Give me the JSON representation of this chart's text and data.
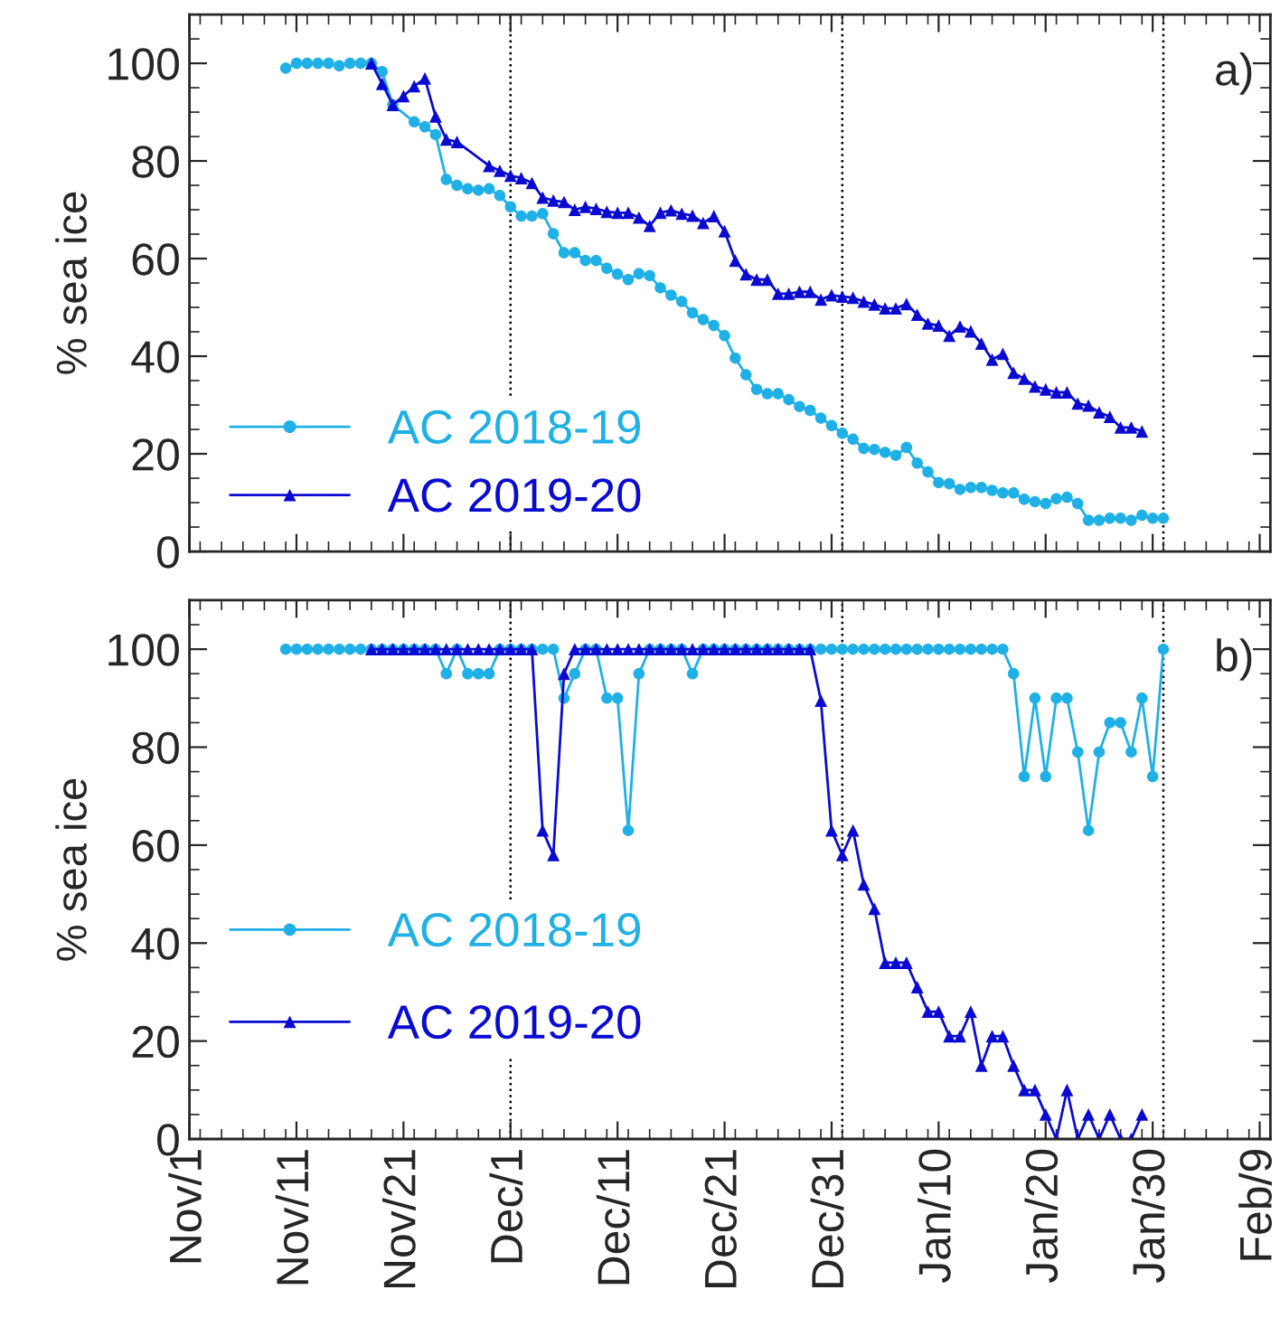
{
  "chart_data": [
    {
      "type": "line",
      "ylabel": "% sea ice",
      "annotations": [
        "a)"
      ],
      "legend": "bottom left",
      "tick_labels": "y",
      "grid": false,
      "xlim": [
        "2019-11-01",
        "2020-02-10"
      ],
      "ylim": [
        0,
        110
      ],
      "yticks": [
        0,
        20,
        40,
        60,
        80,
        100
      ],
      "xticks": [
        {
          "value": "2019-11-01",
          "label": null
        },
        {
          "value": "2019-11-11",
          "label": null
        },
        {
          "value": "2019-11-21",
          "label": null
        },
        {
          "value": "2019-12-01",
          "label": null
        },
        {
          "value": "2019-12-11",
          "label": null
        },
        {
          "value": "2019-12-21",
          "label": null
        },
        {
          "value": "2019-12-31",
          "label": null
        },
        {
          "value": "2020-01-10",
          "label": null
        },
        {
          "value": "2020-01-20",
          "label": null
        },
        {
          "value": "2020-01-30",
          "label": null
        },
        {
          "value": "2020-02-09",
          "label": null
        }
      ],
      "ref_lines": [
        {
          "axis": "x",
          "value": "2019-12-01",
          "color": "#000000",
          "line_style": "dotted"
        },
        {
          "axis": "x",
          "value": "2020-01-01",
          "color": "#000000",
          "line_style": "dotted"
        },
        {
          "axis": "x",
          "value": "2020-01-31",
          "color": "#000000",
          "line_style": "dotted"
        }
      ],
      "series": [
        {
          "name": "AC 2018-19",
          "color": "#1fb0e6",
          "marker": "circle",
          "x": [
            "2019-11-10",
            "2019-11-11",
            "2019-11-12",
            "2019-11-13",
            "2019-11-14",
            "2019-11-15",
            "2019-11-16",
            "2019-11-17",
            "2019-11-18",
            "2019-11-19",
            "2019-11-20",
            "2019-11-22",
            "2019-11-23",
            "2019-11-24",
            "2019-11-25",
            "2019-11-26",
            "2019-11-27",
            "2019-11-28",
            "2019-11-29",
            "2019-11-30",
            "2019-12-01",
            "2019-12-02",
            "2019-12-03",
            "2019-12-04",
            "2019-12-05",
            "2019-12-06",
            "2019-12-07",
            "2019-12-08",
            "2019-12-09",
            "2019-12-10",
            "2019-12-11",
            "2019-12-12",
            "2019-12-13",
            "2019-12-14",
            "2019-12-15",
            "2019-12-16",
            "2019-12-17",
            "2019-12-18",
            "2019-12-19",
            "2019-12-20",
            "2019-12-21",
            "2019-12-22",
            "2019-12-23",
            "2019-12-24",
            "2019-12-25",
            "2019-12-26",
            "2019-12-27",
            "2019-12-28",
            "2019-12-29",
            "2019-12-30",
            "2019-12-31",
            "2020-01-01",
            "2020-01-02",
            "2020-01-03",
            "2020-01-04",
            "2020-01-05",
            "2020-01-06",
            "2020-01-07",
            "2020-01-08",
            "2020-01-09",
            "2020-01-10",
            "2020-01-11",
            "2020-01-12",
            "2020-01-13",
            "2020-01-14",
            "2020-01-15",
            "2020-01-16",
            "2020-01-17",
            "2020-01-18",
            "2020-01-19",
            "2020-01-20",
            "2020-01-21",
            "2020-01-22",
            "2020-01-23",
            "2020-01-24",
            "2020-01-25",
            "2020-01-26",
            "2020-01-27",
            "2020-01-28",
            "2020-01-29",
            "2020-01-30",
            "2020-01-31"
          ],
          "values": [
            99,
            100,
            100,
            100,
            100,
            99.5,
            100,
            100,
            100,
            98.3,
            91.5,
            88,
            87,
            85.4,
            76.2,
            75,
            74.3,
            74,
            74.3,
            72.9,
            70.6,
            68.7,
            68.7,
            69.2,
            65.1,
            61.2,
            61.2,
            59.6,
            59.6,
            58,
            56.8,
            55.7,
            56.9,
            56.5,
            54,
            52.5,
            51.2,
            48.9,
            47.5,
            46.3,
            44.2,
            39.6,
            36.2,
            33.2,
            32.3,
            32.3,
            31.1,
            29.7,
            28.9,
            27.3,
            25.8,
            24.2,
            23,
            21.1,
            20.9,
            20.3,
            19.7,
            21.3,
            18.1,
            16.3,
            14.1,
            13.9,
            12.7,
            13.1,
            13.1,
            12.5,
            12,
            12,
            10.7,
            10.2,
            9.8,
            10.8,
            11.1,
            9.8,
            6.4,
            6.4,
            6.8,
            6.8,
            6.4,
            7.4,
            6.8,
            6.8
          ]
        },
        {
          "name": "AC 2019-20",
          "color": "#0a0ad2",
          "marker": "triangle",
          "x": [
            "2019-11-18",
            "2019-11-19",
            "2019-11-20",
            "2019-11-21",
            "2019-11-22",
            "2019-11-23",
            "2019-11-24",
            "2019-11-25",
            "2019-11-26",
            "2019-11-29",
            "2019-11-30",
            "2019-12-01",
            "2019-12-02",
            "2019-12-03",
            "2019-12-04",
            "2019-12-05",
            "2019-12-06",
            "2019-12-07",
            "2019-12-08",
            "2019-12-09",
            "2019-12-10",
            "2019-12-11",
            "2019-12-12",
            "2019-12-13",
            "2019-12-14",
            "2019-12-15",
            "2019-12-16",
            "2019-12-17",
            "2019-12-18",
            "2019-12-19",
            "2019-12-20",
            "2019-12-21",
            "2019-12-22",
            "2019-12-23",
            "2019-12-24",
            "2019-12-25",
            "2019-12-26",
            "2019-12-27",
            "2019-12-28",
            "2019-12-29",
            "2019-12-30",
            "2019-12-31",
            "2020-01-01",
            "2020-01-02",
            "2020-01-03",
            "2020-01-04",
            "2020-01-05",
            "2020-01-06",
            "2020-01-07",
            "2020-01-08",
            "2020-01-09",
            "2020-01-10",
            "2020-01-11",
            "2020-01-12",
            "2020-01-13",
            "2020-01-14",
            "2020-01-15",
            "2020-01-16",
            "2020-01-17",
            "2020-01-18",
            "2020-01-19",
            "2020-01-20",
            "2020-01-21",
            "2020-01-22",
            "2020-01-23",
            "2020-01-24",
            "2020-01-25",
            "2020-01-26",
            "2020-01-27",
            "2020-01-28",
            "2020-01-29"
          ],
          "values": [
            100,
            95.8,
            91.5,
            93.3,
            95.3,
            96.9,
            89.1,
            84.4,
            83.9,
            79,
            78,
            77,
            76.5,
            75.5,
            72.5,
            71.9,
            71.6,
            70,
            70.6,
            70.2,
            69.6,
            69.4,
            69.4,
            68.4,
            66.7,
            69.4,
            69.9,
            69.2,
            68.8,
            67.3,
            68.7,
            65.6,
            59.6,
            56.8,
            55.7,
            55.7,
            52.8,
            52.8,
            53.2,
            53.2,
            51.6,
            52.5,
            52.2,
            52,
            51.2,
            50.6,
            49.8,
            49.8,
            50.7,
            48.5,
            46.7,
            46.3,
            44.2,
            46.1,
            45.1,
            42.6,
            39.3,
            40.5,
            36.6,
            35.4,
            33.8,
            33.2,
            32.6,
            32.6,
            30.3,
            29.9,
            28.5,
            27.6,
            25.4,
            25.4,
            24.6
          ]
        }
      ]
    },
    {
      "type": "line",
      "ylabel": "% sea ice",
      "annotations": [
        "b)"
      ],
      "legend": "left",
      "grid": false,
      "xlim": [
        "2019-11-01",
        "2020-02-10"
      ],
      "ylim": [
        0,
        110
      ],
      "yticks": [
        0,
        20,
        40,
        60,
        80,
        100
      ],
      "xticks": [
        {
          "value": "2019-11-01",
          "label": "Nov/1"
        },
        {
          "value": "2019-11-11",
          "label": "Nov/11"
        },
        {
          "value": "2019-11-21",
          "label": "Nov/21"
        },
        {
          "value": "2019-12-01",
          "label": "Dec/1"
        },
        {
          "value": "2019-12-11",
          "label": "Dec/11"
        },
        {
          "value": "2019-12-21",
          "label": "Dec/21"
        },
        {
          "value": "2019-12-31",
          "label": "Dec/31"
        },
        {
          "value": "2020-01-10",
          "label": "Jan/10"
        },
        {
          "value": "2020-01-20",
          "label": "Jan/20"
        },
        {
          "value": "2020-01-30",
          "label": "Jan/30"
        },
        {
          "value": "2020-02-09",
          "label": "Feb/9"
        }
      ],
      "ref_lines": [
        {
          "axis": "x",
          "value": "2019-12-01",
          "color": "#000000",
          "line_style": "dotted"
        },
        {
          "axis": "x",
          "value": "2020-01-01",
          "color": "#000000",
          "line_style": "dotted"
        },
        {
          "axis": "x",
          "value": "2020-01-31",
          "color": "#000000",
          "line_style": "dotted"
        }
      ],
      "series": [
        {
          "name": "AC 2018-19",
          "color": "#1fb0e6",
          "marker": "circle",
          "x": [
            "2019-11-10",
            "2019-11-11",
            "2019-11-12",
            "2019-11-13",
            "2019-11-14",
            "2019-11-15",
            "2019-11-16",
            "2019-11-17",
            "2019-11-18",
            "2019-11-19",
            "2019-11-20",
            "2019-11-21",
            "2019-11-22",
            "2019-11-23",
            "2019-11-24",
            "2019-11-25",
            "2019-11-26",
            "2019-11-27",
            "2019-11-28",
            "2019-11-29",
            "2019-11-30",
            "2019-12-01",
            "2019-12-02",
            "2019-12-03",
            "2019-12-04",
            "2019-12-05",
            "2019-12-06",
            "2019-12-07",
            "2019-12-08",
            "2019-12-09",
            "2019-12-10",
            "2019-12-11",
            "2019-12-12",
            "2019-12-13",
            "2019-12-14",
            "2019-12-15",
            "2019-12-16",
            "2019-12-17",
            "2019-12-18",
            "2019-12-19",
            "2019-12-20",
            "2019-12-21",
            "2019-12-22",
            "2019-12-23",
            "2019-12-24",
            "2019-12-25",
            "2019-12-26",
            "2019-12-27",
            "2019-12-28",
            "2019-12-29",
            "2019-12-30",
            "2019-12-31",
            "2020-01-01",
            "2020-01-02",
            "2020-01-03",
            "2020-01-04",
            "2020-01-05",
            "2020-01-06",
            "2020-01-07",
            "2020-01-08",
            "2020-01-09",
            "2020-01-10",
            "2020-01-11",
            "2020-01-12",
            "2020-01-13",
            "2020-01-14",
            "2020-01-15",
            "2020-01-16",
            "2020-01-17",
            "2020-01-18",
            "2020-01-19",
            "2020-01-20",
            "2020-01-21",
            "2020-01-22",
            "2020-01-23",
            "2020-01-24",
            "2020-01-25",
            "2020-01-26",
            "2020-01-27",
            "2020-01-28",
            "2020-01-29",
            "2020-01-30",
            "2020-01-31"
          ],
          "values": [
            100,
            100,
            100,
            100,
            100,
            100,
            100,
            100,
            100,
            100,
            100,
            100,
            100,
            100,
            100,
            95,
            100,
            95,
            95,
            95,
            100,
            100,
            100,
            100,
            100,
            100,
            90,
            95,
            100,
            100,
            90,
            90,
            63,
            95,
            100,
            100,
            100,
            100,
            95,
            100,
            100,
            100,
            100,
            100,
            100,
            100,
            100,
            100,
            100,
            100,
            100,
            100,
            100,
            100,
            100,
            100,
            100,
            100,
            100,
            100,
            100,
            100,
            100,
            100,
            100,
            100,
            100,
            100,
            95,
            74,
            90,
            74,
            90,
            90,
            79,
            63,
            79,
            85,
            85,
            79,
            90,
            74,
            100
          ]
        },
        {
          "name": "AC 2019-20",
          "color": "#0a0ad2",
          "marker": "triangle",
          "x": [
            "2019-11-18",
            "2019-11-19",
            "2019-11-20",
            "2019-11-21",
            "2019-11-22",
            "2019-11-23",
            "2019-11-24",
            "2019-11-25",
            "2019-11-26",
            "2019-11-27",
            "2019-11-28",
            "2019-11-29",
            "2019-11-30",
            "2019-12-01",
            "2019-12-02",
            "2019-12-03",
            "2019-12-04",
            "2019-12-05",
            "2019-12-06",
            "2019-12-07",
            "2019-12-08",
            "2019-12-09",
            "2019-12-10",
            "2019-12-11",
            "2019-12-12",
            "2019-12-13",
            "2019-12-14",
            "2019-12-15",
            "2019-12-16",
            "2019-12-17",
            "2019-12-18",
            "2019-12-19",
            "2019-12-20",
            "2019-12-21",
            "2019-12-22",
            "2019-12-23",
            "2019-12-24",
            "2019-12-25",
            "2019-12-26",
            "2019-12-27",
            "2019-12-28",
            "2019-12-29",
            "2019-12-30",
            "2019-12-31",
            "2020-01-01",
            "2020-01-02",
            "2020-01-03",
            "2020-01-04",
            "2020-01-05",
            "2020-01-06",
            "2020-01-07",
            "2020-01-08",
            "2020-01-09",
            "2020-01-10",
            "2020-01-11",
            "2020-01-12",
            "2020-01-13",
            "2020-01-14",
            "2020-01-15",
            "2020-01-16",
            "2020-01-17",
            "2020-01-18",
            "2020-01-19",
            "2020-01-20",
            "2020-01-21",
            "2020-01-22",
            "2020-01-23",
            "2020-01-24",
            "2020-01-25",
            "2020-01-26",
            "2020-01-27",
            "2020-01-28",
            "2020-01-29"
          ],
          "values": [
            100,
            100,
            100,
            100,
            100,
            100,
            100,
            100,
            100,
            100,
            100,
            100,
            100,
            100,
            100,
            100,
            63,
            58,
            95,
            100,
            100,
            100,
            100,
            100,
            100,
            100,
            100,
            100,
            100,
            100,
            100,
            100,
            100,
            100,
            100,
            100,
            100,
            100,
            100,
            100,
            100,
            100,
            89.5,
            63,
            58,
            63,
            52,
            47,
            36,
            36,
            36,
            31,
            26,
            26,
            21,
            21,
            26,
            15,
            21,
            21,
            15,
            10,
            10,
            5,
            0,
            10,
            0,
            5,
            0,
            5,
            0,
            0,
            5
          ]
        }
      ]
    }
  ]
}
